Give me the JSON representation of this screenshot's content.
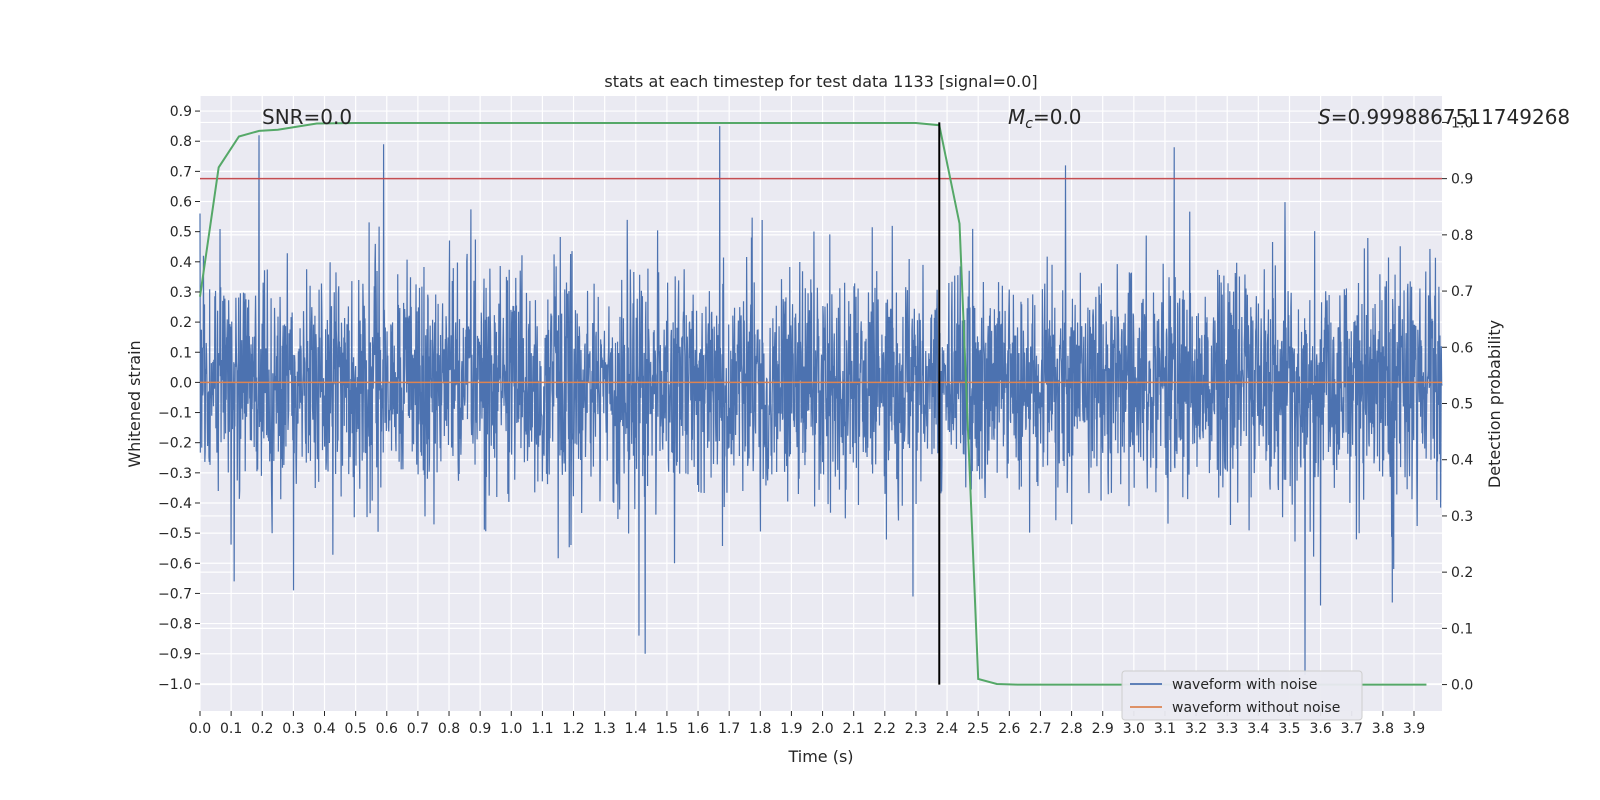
{
  "chart_data": {
    "type": "line",
    "title": "stats at each timestep for test data 1133 [signal=0.0]",
    "xlabel": "Time (s)",
    "ylabel": "Whitened strain",
    "y2label": "Detection probability",
    "xlim": [
      0.0,
      3.99
    ],
    "ylim": [
      -1.09,
      0.95
    ],
    "y2lim": [
      -0.047,
      1.047
    ],
    "x_ticks": [
      "0.0",
      "0.1",
      "0.2",
      "0.3",
      "0.4",
      "0.5",
      "0.6",
      "0.7",
      "0.8",
      "0.9",
      "1.0",
      "1.1",
      "1.2",
      "1.3",
      "1.4",
      "1.5",
      "1.6",
      "1.7",
      "1.8",
      "1.9",
      "2.0",
      "2.1",
      "2.2",
      "2.3",
      "2.4",
      "2.5",
      "2.6",
      "2.7",
      "2.8",
      "2.9",
      "3.0",
      "3.1",
      "3.2",
      "3.3",
      "3.4",
      "3.5",
      "3.6",
      "3.7",
      "3.8",
      "3.9"
    ],
    "y_ticks": [
      "0.9",
      "0.8",
      "0.7",
      "0.6",
      "0.5",
      "0.4",
      "0.3",
      "0.2",
      "0.1",
      "0.0",
      "−0.1",
      "−0.2",
      "−0.3",
      "−0.4",
      "−0.5",
      "−0.6",
      "−0.7",
      "−0.8",
      "−0.9",
      "−1.0"
    ],
    "y_tick_values": [
      0.9,
      0.8,
      0.7,
      0.6,
      0.5,
      0.4,
      0.3,
      0.2,
      0.1,
      0.0,
      -0.1,
      -0.2,
      -0.3,
      -0.4,
      -0.5,
      -0.6,
      -0.7,
      -0.8,
      -0.9,
      -1.0
    ],
    "y2_ticks": [
      "1.0",
      "0.9",
      "0.8",
      "0.7",
      "0.6",
      "0.5",
      "0.4",
      "0.3",
      "0.2",
      "0.1",
      "0.0"
    ],
    "y2_tick_values": [
      1.0,
      0.9,
      0.8,
      0.7,
      0.6,
      0.5,
      0.4,
      0.3,
      0.2,
      0.1,
      0.0
    ],
    "grid": true,
    "legend_position": "bottom-right",
    "annotations": {
      "snr_label": "SNR=0.0",
      "mc_prefix": "M",
      "mc_subscript": "c",
      "mc_value": "=0.0",
      "s_prefix": "S",
      "s_value": "=0.9998867511749268"
    },
    "series": [
      {
        "name": "waveform with noise",
        "axis": "left",
        "color": "#4c72b0",
        "kind": "noise",
        "envelope": 0.3,
        "spikes": [
          [
            0.19,
            0.82
          ],
          [
            0.59,
            0.79
          ],
          [
            1.67,
            0.85
          ],
          [
            2.78,
            0.72
          ],
          [
            3.13,
            0.78
          ],
          [
            1.43,
            -0.9
          ],
          [
            1.41,
            -0.84
          ],
          [
            3.55,
            -0.97
          ],
          [
            3.6,
            -0.74
          ],
          [
            3.83,
            -0.73
          ],
          [
            2.29,
            -0.71
          ],
          [
            0.3,
            -0.69
          ],
          [
            0.11,
            -0.66
          ]
        ]
      },
      {
        "name": "waveform without noise",
        "axis": "left",
        "color": "#dd8452",
        "x": [
          0.0,
          3.99
        ],
        "y": [
          0.0,
          0.0
        ]
      },
      {
        "axis": "right",
        "color": "#55a868",
        "x": [
          0.0,
          0.06,
          0.125,
          0.19,
          0.25,
          0.375,
          0.5,
          0.625,
          0.75,
          1.0,
          1.25,
          1.5,
          1.75,
          2.0,
          2.25,
          2.3,
          2.375,
          2.44,
          2.5,
          2.56,
          2.625,
          2.75,
          3.0,
          3.25,
          3.5,
          3.75,
          3.94
        ],
        "y": [
          0.69,
          0.92,
          0.975,
          0.985,
          0.987,
          0.998,
          0.999,
          0.999,
          0.999,
          0.999,
          0.999,
          0.999,
          0.999,
          0.999,
          0.999,
          0.999,
          0.995,
          0.82,
          0.01,
          0.001,
          0.0,
          0.0,
          0.0,
          0.0,
          0.0,
          0.0,
          0.0
        ]
      }
    ],
    "threshold_line": {
      "axis": "right",
      "value": 0.9,
      "color": "#c44e52"
    },
    "marker_line": {
      "x": 2.375,
      "color": "#000000"
    }
  }
}
